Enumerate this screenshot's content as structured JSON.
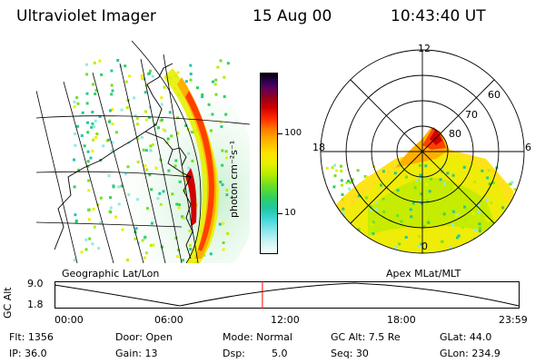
{
  "header": {
    "instrument": "Ultraviolet Imager",
    "date": "15 Aug 00",
    "time": "10:43:40 UT"
  },
  "colorbar": {
    "unit_label": "photon cm⁻²s⁻¹",
    "tick_labels": [
      "100",
      "10"
    ]
  },
  "polar_plot": {
    "mlt_labels": [
      "12",
      "18",
      "6",
      "0"
    ],
    "lat_labels": [
      "60",
      "70",
      "80"
    ]
  },
  "altitude_plot": {
    "left_label": "Geographic Lat/Lon",
    "right_label": "Apex MLat/MLT",
    "y_axis_title": "GC Alt",
    "y_ticks": [
      "9.0",
      "1.8"
    ],
    "x_ticks": [
      "00:00",
      "06:00",
      "12:00",
      "18:00",
      "23:59"
    ],
    "marker_time": "10:43:40"
  },
  "status": {
    "flt": "Flt: 1356",
    "ip": "IP: 36.0",
    "door": "Door: Open",
    "gain": "Gain: 13",
    "mode": "Mode: Normal",
    "dsp_label": "Dsp:",
    "dsp_value": "5.0",
    "gc_alt": "GC Alt: 7.5 Re",
    "seq": "Seq: 30",
    "glat": "GLat:  44.0",
    "glon": "GLon: 234.9"
  },
  "colors": {
    "marker": "#ff0000",
    "aurora_peak": "#d00000",
    "aurora_mid": "#ffb000",
    "aurora_low": "#40d0a0"
  }
}
